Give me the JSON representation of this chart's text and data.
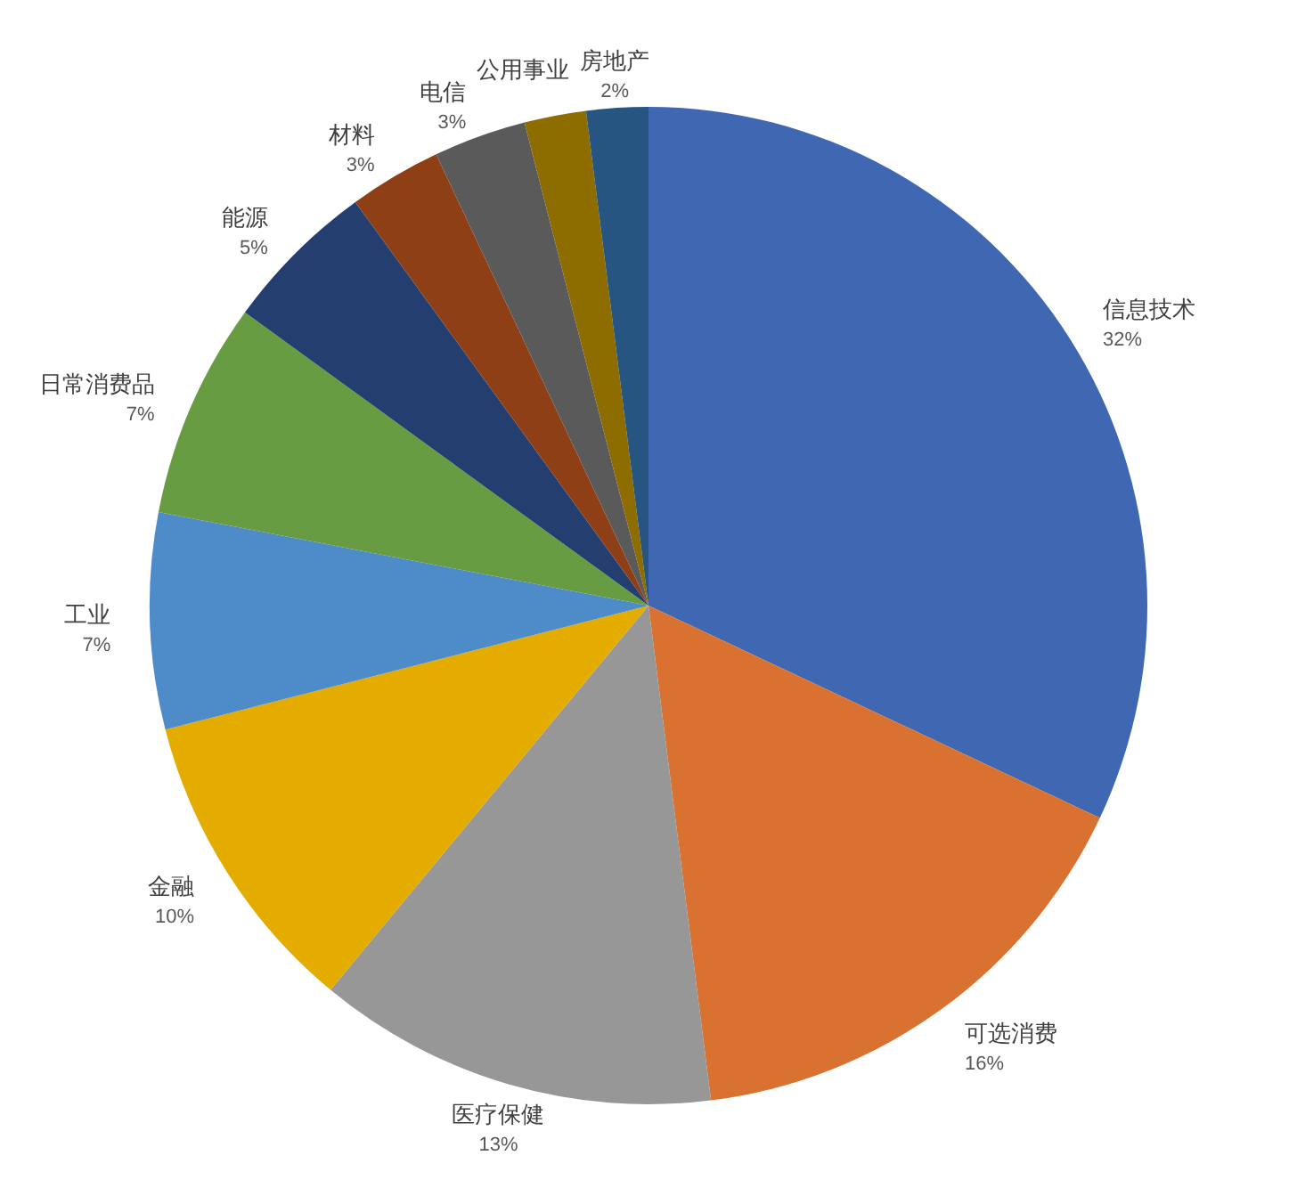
{
  "chart_data": {
    "type": "pie",
    "categories": [
      "信息技术",
      "可选消费",
      "医疗保健",
      "金融",
      "工业",
      "日常消费品",
      "能源",
      "材料",
      "电信",
      "公用事业",
      "房地产"
    ],
    "values": [
      32,
      16,
      13,
      10,
      7,
      7,
      5,
      3,
      3,
      2,
      2
    ],
    "value_labels": [
      "32%",
      "16%",
      "13%",
      "10%",
      "7%",
      "7%",
      "5%",
      "3%",
      "3%",
      null,
      "2%"
    ],
    "colors": [
      "#4068b2",
      "#d97130",
      "#979797",
      "#e5ac00",
      "#4d8bc9",
      "#679c42",
      "#243f6f",
      "#8e3f16",
      "#5a5a5a",
      "#8e6d00",
      "#255580"
    ]
  }
}
